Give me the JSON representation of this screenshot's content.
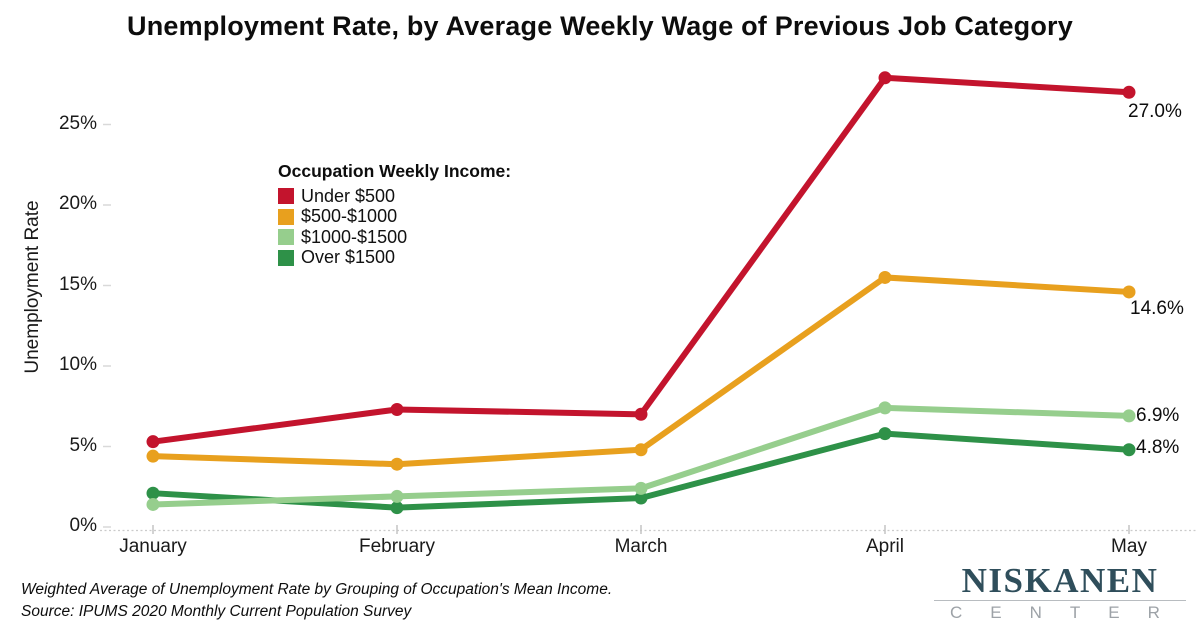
{
  "title": "Unemployment Rate, by Average Weekly Wage of Previous Job Category",
  "chart_data": {
    "type": "line",
    "title": "Unemployment Rate, by Average Weekly Wage of Previous Job Category",
    "xlabel": "",
    "ylabel": "Unemployment Rate",
    "categories": [
      "January",
      "February",
      "March",
      "April",
      "May"
    ],
    "ytick_labels": [
      "0%",
      "5%",
      "10%",
      "15%",
      "20%",
      "25%"
    ],
    "ytick_values": [
      0,
      5,
      10,
      15,
      20,
      25
    ],
    "ylim": [
      0,
      29
    ],
    "grid": false,
    "legend_position": "inside-top-left",
    "legend_title": "Occupation Weekly Income:",
    "series": [
      {
        "name": "Under $500",
        "color": "#c3142d",
        "values": [
          5.3,
          7.3,
          7.0,
          27.9,
          27.0
        ],
        "end_label": "27.0%"
      },
      {
        "name": "$500-$1000",
        "color": "#e8a01e",
        "values": [
          4.4,
          3.9,
          4.8,
          15.5,
          14.6
        ],
        "end_label": "14.6%"
      },
      {
        "name": "$1000-$1500",
        "color": "#96ce8d",
        "values": [
          1.4,
          1.9,
          2.4,
          7.4,
          6.9
        ],
        "end_label": "6.9%"
      },
      {
        "name": "Over $1500",
        "color": "#2e9148",
        "values": [
          2.1,
          1.2,
          1.8,
          5.8,
          4.8
        ],
        "end_label": "4.8%"
      }
    ]
  },
  "footer": {
    "line1": "Weighted Average of Unemployment Rate by Grouping of Occupation's Mean Income.",
    "line2": "Source: IPUMS 2020 Monthly Current Population Survey"
  },
  "logo": {
    "name": "NISKANEN",
    "subtitle": "CENTER",
    "name_color": "#2f4e5b",
    "subtitle_color": "#9da2a7"
  },
  "colors": {
    "axis_line": "#cbcbcb",
    "tick_mark": "#c4c4c4",
    "background": "#ffffff"
  }
}
